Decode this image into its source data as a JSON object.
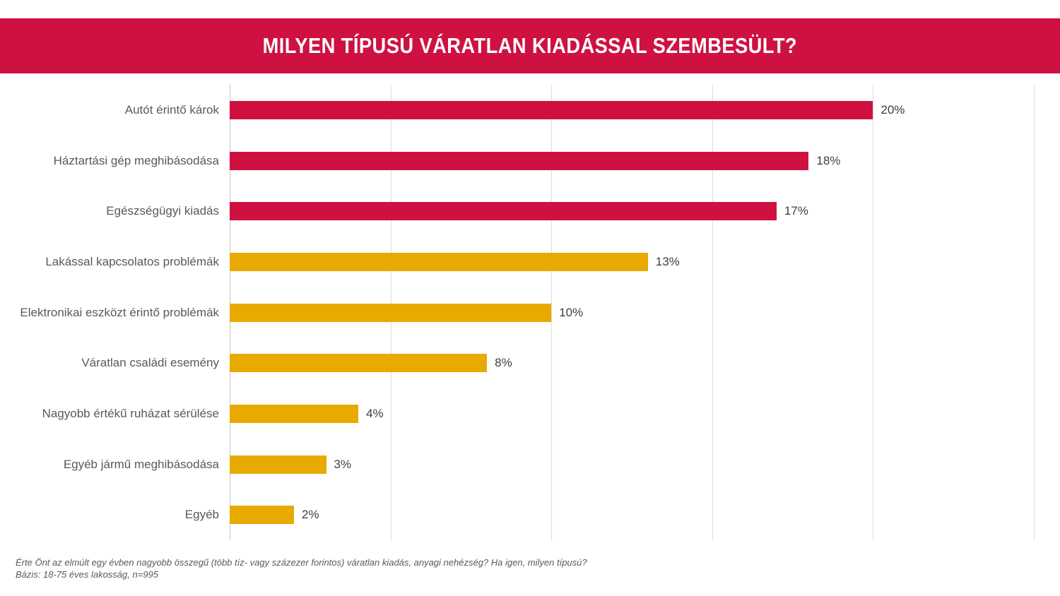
{
  "header": {
    "title": "MILYEN TÍPUSÚ VÁRATLAN KIADÁSSAL SZEMBESÜLT?"
  },
  "colors": {
    "banner_background": "#cf1142",
    "banner_text": "#ffffff",
    "bar_red": "#cf1142",
    "bar_gold": "#e8a900",
    "category_label": "#595959",
    "value_label": "#3d3d3d",
    "gridline": "#dcdcdc"
  },
  "chart_data": {
    "type": "bar",
    "orientation": "horizontal",
    "title": "MILYEN TÍPUSÚ VÁRATLAN KIADÁSSAL SZEMBESÜLT?",
    "categories": [
      "Autót érintő károk",
      "Háztartási gép meghibásodása",
      "Egészségügyi kiadás",
      "Lakással kapcsolatos problémák",
      "Elektronikai eszközt érintő problémák",
      "Váratlan családi esemény",
      "Nagyobb értékű ruházat sérülése",
      "Egyéb jármű meghibásodása",
      "Egyéb"
    ],
    "values": [
      20,
      18,
      17,
      13,
      10,
      8,
      4,
      3,
      2
    ],
    "display_values": [
      "20%",
      "18%",
      "17%",
      "13%",
      "10%",
      "8%",
      "4%",
      "3%",
      "2%"
    ],
    "bar_colors": [
      "#cf1142",
      "#cf1142",
      "#cf1142",
      "#e8a900",
      "#e8a900",
      "#e8a900",
      "#e8a900",
      "#e8a900",
      "#e8a900"
    ],
    "xlabel": "",
    "ylabel": "",
    "xlim": [
      0,
      25
    ],
    "gridline_step": 5,
    "grid": true,
    "legend": false,
    "value_labels_position": "right-of-bar"
  },
  "footer": {
    "question": "Érte Önt az elmúlt egy évben nagyobb összegű (több tíz- vagy százezer forintos) váratlan kiadás, anyagi nehézség? Ha igen, milyen típusú?",
    "base": "Bázis: 18-75 éves lakosság, n=995"
  }
}
